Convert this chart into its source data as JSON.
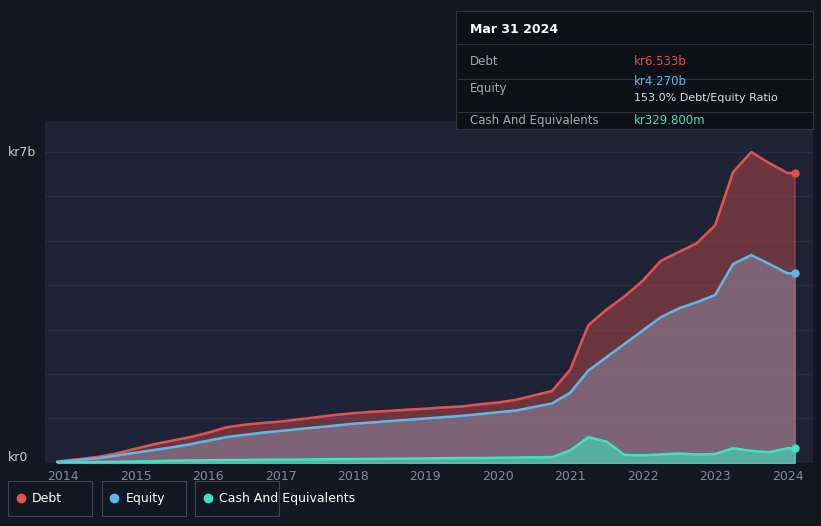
{
  "bg_color": "#131722",
  "plot_bg_color": "#1e2235",
  "grid_color": "#2a3050",
  "title_date": "Mar 31 2024",
  "tooltip_debt": "kr6.533b",
  "tooltip_equity": "kr4.270b",
  "tooltip_ratio": "153.0% Debt/Equity Ratio",
  "tooltip_cash": "kr329.800m",
  "debt_color": "#e05252",
  "equity_color": "#5cb8e8",
  "cash_color": "#40e0c0",
  "ylabel_kr7b": "kr7b",
  "ylabel_kr0": "kr0",
  "x_ticks": [
    2014,
    2015,
    2016,
    2017,
    2018,
    2019,
    2020,
    2021,
    2022,
    2023,
    2024
  ],
  "years": [
    2013.92,
    2014.0,
    2014.25,
    2014.5,
    2014.75,
    2015.0,
    2015.25,
    2015.5,
    2015.75,
    2016.0,
    2016.25,
    2016.5,
    2016.75,
    2017.0,
    2017.25,
    2017.5,
    2017.75,
    2018.0,
    2018.25,
    2018.5,
    2018.75,
    2019.0,
    2019.25,
    2019.5,
    2019.75,
    2020.0,
    2020.25,
    2020.5,
    2020.75,
    2021.0,
    2021.25,
    2021.5,
    2021.75,
    2022.0,
    2022.25,
    2022.5,
    2022.75,
    2023.0,
    2023.25,
    2023.5,
    2023.75,
    2024.0,
    2024.1
  ],
  "debt": [
    0.03,
    0.05,
    0.09,
    0.14,
    0.22,
    0.32,
    0.42,
    0.5,
    0.58,
    0.68,
    0.8,
    0.86,
    0.9,
    0.93,
    0.98,
    1.03,
    1.08,
    1.12,
    1.15,
    1.17,
    1.2,
    1.22,
    1.25,
    1.27,
    1.32,
    1.36,
    1.42,
    1.52,
    1.62,
    2.1,
    3.1,
    3.45,
    3.75,
    4.1,
    4.55,
    4.75,
    4.95,
    5.35,
    6.55,
    7.0,
    6.75,
    6.53,
    6.53
  ],
  "equity": [
    0.02,
    0.03,
    0.07,
    0.11,
    0.17,
    0.23,
    0.29,
    0.35,
    0.42,
    0.5,
    0.58,
    0.63,
    0.68,
    0.72,
    0.76,
    0.8,
    0.84,
    0.88,
    0.91,
    0.94,
    0.97,
    1.0,
    1.03,
    1.06,
    1.1,
    1.14,
    1.18,
    1.26,
    1.34,
    1.58,
    2.08,
    2.38,
    2.68,
    2.98,
    3.28,
    3.48,
    3.62,
    3.78,
    4.48,
    4.68,
    4.48,
    4.27,
    4.27
  ],
  "cash": [
    0.005,
    0.01,
    0.015,
    0.02,
    0.025,
    0.03,
    0.04,
    0.05,
    0.055,
    0.06,
    0.065,
    0.065,
    0.07,
    0.075,
    0.075,
    0.08,
    0.085,
    0.085,
    0.09,
    0.095,
    0.095,
    0.1,
    0.105,
    0.11,
    0.11,
    0.115,
    0.12,
    0.125,
    0.13,
    0.28,
    0.58,
    0.48,
    0.18,
    0.17,
    0.19,
    0.21,
    0.19,
    0.2,
    0.33,
    0.27,
    0.24,
    0.33,
    0.33
  ],
  "ylim_max": 7.7,
  "xlim_min": 2013.75,
  "xlim_max": 2024.35
}
